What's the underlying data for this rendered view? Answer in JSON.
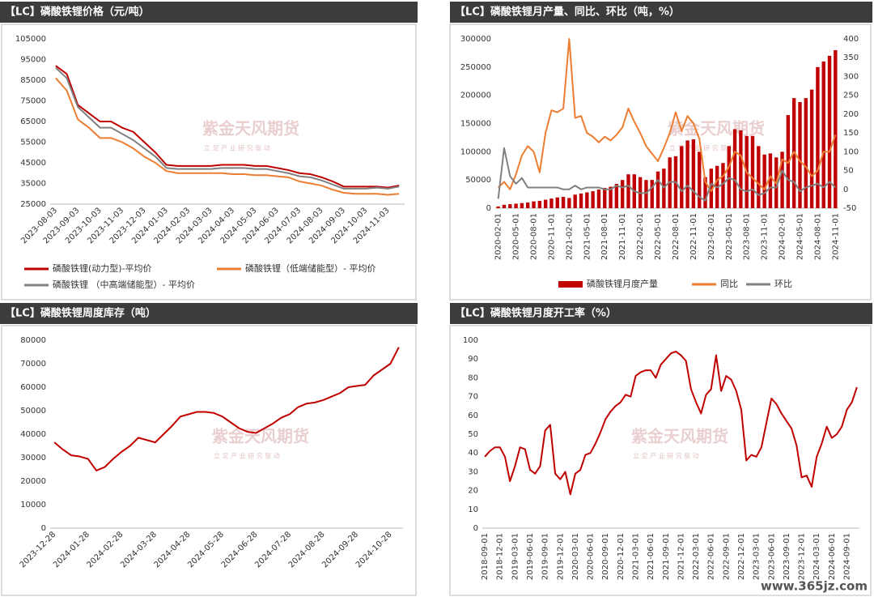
{
  "watermark": {
    "name": "紫金天风期货",
    "slogan": "立 足 产 业   研 究 驱 动",
    "site": "www.365jz.com"
  },
  "chart_data": [
    {
      "type": "line",
      "title": "【LC】磷酸铁锂价格（元/吨）",
      "categories": [
        "2023-08-03",
        null,
        "2023-09-03",
        null,
        "2023-10-03",
        null,
        "2023-11-03",
        null,
        "2023-12-03",
        null,
        "2024-01-03",
        null,
        "2024-02-03",
        null,
        "2024-03-03",
        null,
        "2024-04-03",
        null,
        "2024-05-03",
        null,
        "2024-06-03",
        null,
        "2024-07-03",
        null,
        "2024-08-03",
        null,
        "2024-09-03",
        null,
        "2024-10-03",
        null,
        "2024-11-03",
        null
      ],
      "ylim": [
        25000,
        105000
      ],
      "yticks": [
        25000,
        35000,
        45000,
        55000,
        65000,
        75000,
        85000,
        95000,
        105000
      ],
      "grid": false,
      "series": [
        {
          "name": "磷酸铁锂(动力型)-平均价",
          "color": "#c00000",
          "type": "line",
          "values": [
            92000,
            88000,
            73000,
            69000,
            65000,
            65000,
            62000,
            60000,
            55000,
            50000,
            44000,
            43500,
            43500,
            43500,
            43500,
            44000,
            44000,
            44000,
            43500,
            43500,
            42500,
            41500,
            40000,
            39500,
            38000,
            36000,
            33500,
            33500,
            33500,
            33500,
            33000,
            34000
          ]
        },
        {
          "name": "磷酸铁锂（低端储能型）- 平均价",
          "color": "#ed7d31",
          "type": "line",
          "values": [
            86000,
            80000,
            66000,
            62000,
            57000,
            57000,
            55000,
            52000,
            48000,
            45000,
            41000,
            40000,
            40000,
            40000,
            40000,
            40000,
            39500,
            39500,
            39000,
            39000,
            38500,
            38000,
            36000,
            35000,
            34000,
            32000,
            30500,
            30000,
            30000,
            30000,
            29500,
            30000
          ]
        },
        {
          "name": "磷酸铁锂 （中高端储能型）- 平均价",
          "color": "#808080",
          "type": "line",
          "values": [
            91000,
            86000,
            72000,
            67000,
            62000,
            62000,
            59000,
            56000,
            52000,
            48000,
            42500,
            42000,
            42000,
            42000,
            42000,
            42500,
            42500,
            42500,
            42000,
            42000,
            41000,
            40000,
            38500,
            38000,
            36500,
            34500,
            32500,
            32500,
            32500,
            33000,
            32500,
            33500
          ]
        }
      ]
    },
    {
      "type": "bar",
      "title": "【LC】磷酸铁锂月产量、同比、环比（吨，%）",
      "categories": [
        "2020-02-01",
        null,
        null,
        "2020-05-01",
        null,
        null,
        "2020-08-01",
        null,
        null,
        "2020-11-01",
        null,
        null,
        "2021-02-01",
        null,
        null,
        "2021-05-01",
        null,
        null,
        "2021-08-01",
        null,
        null,
        "2021-11-01",
        null,
        null,
        "2022-02-01",
        null,
        null,
        "2022-05-01",
        null,
        null,
        "2022-08-01",
        null,
        null,
        "2022-11-01",
        null,
        null,
        "2023-02-01",
        null,
        null,
        "2023-05-01",
        null,
        null,
        "2023-08-01",
        null,
        null,
        "2023-11-01",
        null,
        null,
        "2024-02-01",
        null,
        null,
        "2024-05-01",
        null,
        null,
        "2024-08-01",
        null,
        null,
        "2024-11-01"
      ],
      "ylim": [
        0,
        300000
      ],
      "yticks": [
        0,
        50000,
        100000,
        150000,
        200000,
        250000,
        300000
      ],
      "y2lim": [
        -50,
        400
      ],
      "y2ticks": [
        -50,
        0,
        50,
        100,
        150,
        200,
        250,
        300,
        350,
        400
      ],
      "grid": false,
      "series": [
        {
          "name": "磷酸铁锂月度产量",
          "color": "#c00000",
          "type": "bar",
          "values": [
            3000,
            6000,
            7000,
            8000,
            9000,
            10000,
            12000,
            13000,
            15000,
            17000,
            19000,
            20000,
            18000,
            24000,
            26000,
            28000,
            30000,
            33000,
            36000,
            38000,
            43000,
            50000,
            60000,
            60000,
            55000,
            50000,
            50000,
            65000,
            70000,
            90000,
            92000,
            110000,
            120000,
            122000,
            100000,
            55000,
            70000,
            75000,
            80000,
            110000,
            140000,
            138000,
            128000,
            128000,
            110000,
            95000,
            97000,
            90000,
            100000,
            165000,
            195000,
            188000,
            195000,
            210000,
            250000,
            260000,
            270000,
            280000
          ]
        },
        {
          "name": "同比",
          "color": "#ed7d31",
          "type": "line",
          "axis": "y2",
          "values": [
            5,
            20,
            0,
            40,
            90,
            115,
            100,
            45,
            150,
            210,
            205,
            215,
            400,
            190,
            195,
            150,
            140,
            125,
            140,
            130,
            145,
            165,
            215,
            180,
            150,
            115,
            95,
            75,
            110,
            150,
            205,
            155,
            195,
            175,
            135,
            20,
            -5,
            25,
            35,
            60,
            100,
            90,
            45,
            30,
            15,
            0,
            35,
            15,
            80,
            70,
            100,
            75,
            60,
            35,
            50,
            100,
            100,
            145
          ]
        },
        {
          "name": "环比",
          "color": "#808080",
          "type": "line",
          "axis": "y2",
          "values": [
            -25,
            110,
            35,
            15,
            30,
            5,
            5,
            5,
            5,
            5,
            5,
            0,
            0,
            10,
            0,
            5,
            5,
            5,
            0,
            0,
            10,
            5,
            10,
            -5,
            -10,
            -10,
            5,
            25,
            5,
            20,
            20,
            -5,
            10,
            -5,
            -20,
            -30,
            15,
            5,
            15,
            30,
            25,
            0,
            -5,
            0,
            -15,
            -10,
            5,
            5,
            50,
            25,
            20,
            -5,
            5,
            10,
            15,
            5,
            20,
            5
          ]
        }
      ]
    },
    {
      "type": "line",
      "title": "【LC】磷酸铁锂周度库存（吨）",
      "categories": [
        "2023-12-28",
        null,
        null,
        null,
        "2024-01-28",
        null,
        null,
        null,
        "2024-02-28",
        null,
        null,
        null,
        "2024-03-28",
        null,
        null,
        null,
        "2024-04-28",
        null,
        null,
        null,
        "2024-05-28",
        null,
        null,
        null,
        "2024-06-28",
        null,
        null,
        null,
        "2024-07-28",
        null,
        null,
        null,
        "2024-08-28",
        null,
        null,
        null,
        "2024-09-28",
        null,
        null,
        null,
        "2024-10-28",
        null
      ],
      "ylim": [
        0,
        80000
      ],
      "yticks": [
        0,
        10000,
        20000,
        30000,
        40000,
        50000,
        60000,
        70000,
        80000
      ],
      "grid": false,
      "series": [
        {
          "color": "#c00000",
          "type": "line",
          "values": [
            36500,
            33500,
            31000,
            30500,
            29500,
            24500,
            26000,
            29500,
            32500,
            35000,
            38500,
            37500,
            36500,
            40000,
            43500,
            47500,
            48500,
            49500,
            49500,
            49000,
            47500,
            45000,
            42500,
            41000,
            40500,
            42500,
            44500,
            47000,
            48500,
            51500,
            53000,
            53500,
            54500,
            56000,
            57500,
            60000,
            60500,
            61000,
            65000,
            67500,
            70000,
            77000
          ]
        }
      ]
    },
    {
      "type": "line",
      "title": "【LC】磷酸铁锂月度开工率（%）",
      "categories": [
        "2018-09-01",
        null,
        null,
        "2018-12-01",
        null,
        null,
        "2019-03-01",
        null,
        null,
        "2019-06-01",
        null,
        null,
        "2019-09-01",
        null,
        null,
        "2019-12-01",
        null,
        null,
        "2020-03-01",
        null,
        null,
        "2020-06-01",
        null,
        null,
        "2020-09-01",
        null,
        null,
        "2020-12-01",
        null,
        null,
        "2021-03-01",
        null,
        null,
        "2021-06-01",
        null,
        null,
        "2021-09-01",
        null,
        null,
        "2021-12-01",
        null,
        null,
        "2022-03-01",
        null,
        null,
        "2022-06-01",
        null,
        null,
        "2022-09-01",
        null,
        null,
        "2022-12-01",
        null,
        null,
        "2023-03-01",
        null,
        null,
        "2023-06-01",
        null,
        null,
        "2023-09-01",
        null,
        null,
        "2023-12-01",
        null,
        null,
        "2024-03-01",
        null,
        null,
        "2024-06-01",
        null,
        null,
        "2024-09-01",
        null,
        null
      ],
      "ylim": [
        0,
        100
      ],
      "yticks": [
        0,
        10,
        20,
        30,
        40,
        50,
        60,
        70,
        80,
        90,
        100
      ],
      "grid": false,
      "series": [
        {
          "color": "#c00000",
          "type": "line",
          "values": [
            38,
            41,
            43,
            43,
            38,
            25,
            33,
            43,
            42,
            31,
            29,
            33,
            52,
            55,
            29,
            26,
            30,
            18,
            29,
            31,
            39,
            40,
            45,
            51,
            58,
            62,
            65,
            67,
            71,
            70,
            81,
            83,
            84,
            84,
            80,
            87,
            90,
            93,
            94,
            92,
            89,
            74,
            67,
            61,
            71,
            74,
            92,
            73,
            81,
            79,
            73,
            63,
            36,
            39,
            38,
            43,
            56,
            69,
            66,
            61,
            57,
            53,
            44,
            27,
            28,
            22,
            38,
            45,
            54,
            48,
            50,
            54,
            63,
            67,
            75
          ]
        }
      ]
    }
  ]
}
